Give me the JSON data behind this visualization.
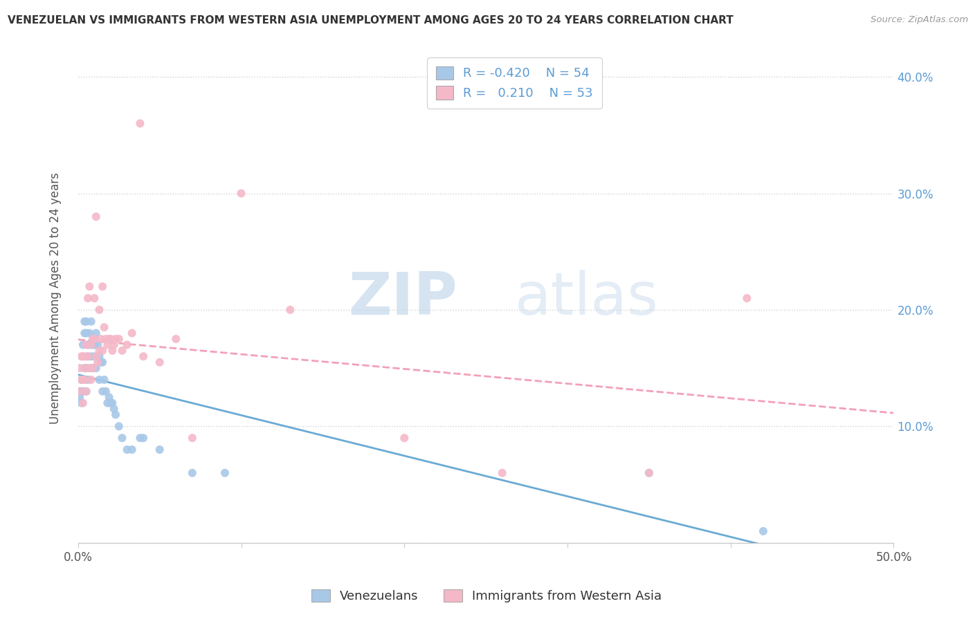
{
  "title": "VENEZUELAN VS IMMIGRANTS FROM WESTERN ASIA UNEMPLOYMENT AMONG AGES 20 TO 24 YEARS CORRELATION CHART",
  "source": "Source: ZipAtlas.com",
  "ylabel": "Unemployment Among Ages 20 to 24 years",
  "xlim": [
    0.0,
    0.5
  ],
  "ylim": [
    0.0,
    0.42
  ],
  "xtick_labels": [
    "0.0%",
    "",
    "",
    "",
    "",
    "50.0%"
  ],
  "ytick_labels_right": [
    "",
    "10.0%",
    "20.0%",
    "30.0%",
    "40.0%"
  ],
  "blue_R": -0.42,
  "blue_N": 54,
  "pink_R": 0.21,
  "pink_N": 53,
  "blue_color": "#a8c8e8",
  "pink_color": "#f4b8c8",
  "blue_line_color": "#6aaad4",
  "pink_line_color": "#f4a0b8",
  "watermark_zip": "ZIP",
  "watermark_atlas": "atlas",
  "legend_label_blue": "Venezuelans",
  "legend_label_pink": "Immigrants from Western Asia",
  "blue_x": [
    0.001,
    0.001,
    0.002,
    0.002,
    0.002,
    0.003,
    0.003,
    0.003,
    0.004,
    0.004,
    0.004,
    0.005,
    0.005,
    0.005,
    0.005,
    0.006,
    0.006,
    0.006,
    0.007,
    0.007,
    0.008,
    0.008,
    0.008,
    0.009,
    0.009,
    0.01,
    0.01,
    0.011,
    0.011,
    0.012,
    0.013,
    0.013,
    0.014,
    0.015,
    0.015,
    0.016,
    0.017,
    0.018,
    0.019,
    0.02,
    0.021,
    0.022,
    0.023,
    0.025,
    0.027,
    0.03,
    0.033,
    0.038,
    0.04,
    0.05,
    0.07,
    0.09,
    0.35,
    0.42
  ],
  "blue_y": [
    0.125,
    0.13,
    0.13,
    0.14,
    0.12,
    0.14,
    0.17,
    0.13,
    0.18,
    0.19,
    0.15,
    0.19,
    0.18,
    0.15,
    0.13,
    0.17,
    0.16,
    0.14,
    0.17,
    0.18,
    0.16,
    0.19,
    0.15,
    0.17,
    0.15,
    0.17,
    0.16,
    0.18,
    0.15,
    0.17,
    0.16,
    0.14,
    0.155,
    0.155,
    0.13,
    0.14,
    0.13,
    0.12,
    0.125,
    0.12,
    0.12,
    0.115,
    0.11,
    0.1,
    0.09,
    0.08,
    0.08,
    0.09,
    0.09,
    0.08,
    0.06,
    0.06,
    0.06,
    0.01
  ],
  "pink_x": [
    0.001,
    0.001,
    0.002,
    0.002,
    0.003,
    0.003,
    0.003,
    0.004,
    0.004,
    0.005,
    0.005,
    0.005,
    0.006,
    0.006,
    0.007,
    0.007,
    0.008,
    0.008,
    0.009,
    0.009,
    0.01,
    0.01,
    0.011,
    0.011,
    0.012,
    0.013,
    0.013,
    0.014,
    0.015,
    0.015,
    0.016,
    0.017,
    0.018,
    0.019,
    0.02,
    0.021,
    0.022,
    0.023,
    0.025,
    0.027,
    0.03,
    0.033,
    0.038,
    0.04,
    0.05,
    0.06,
    0.07,
    0.1,
    0.13,
    0.2,
    0.26,
    0.35,
    0.41
  ],
  "pink_y": [
    0.13,
    0.15,
    0.14,
    0.16,
    0.12,
    0.14,
    0.16,
    0.14,
    0.16,
    0.15,
    0.17,
    0.13,
    0.21,
    0.16,
    0.15,
    0.22,
    0.14,
    0.17,
    0.15,
    0.175,
    0.21,
    0.175,
    0.16,
    0.28,
    0.155,
    0.2,
    0.165,
    0.175,
    0.22,
    0.165,
    0.185,
    0.175,
    0.17,
    0.175,
    0.175,
    0.165,
    0.17,
    0.175,
    0.175,
    0.165,
    0.17,
    0.18,
    0.36,
    0.16,
    0.155,
    0.175,
    0.09,
    0.3,
    0.2,
    0.09,
    0.06,
    0.06,
    0.21
  ],
  "background_color": "#ffffff",
  "grid_color": "#d0d0d0"
}
